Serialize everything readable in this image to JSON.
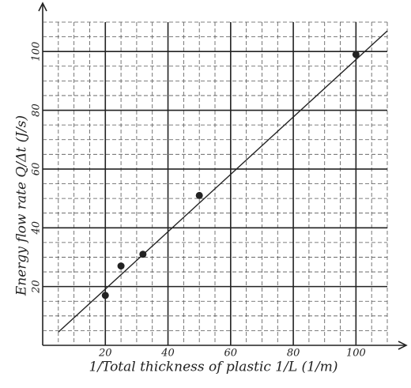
{
  "chart_data": {
    "type": "scatter",
    "x_label": "1/Total thickness of plastic 1/L (1/m)",
    "y_label": "Energy flow rate Q/Δt (J/s)",
    "x": [
      20,
      25,
      32,
      50,
      100
    ],
    "values": [
      17,
      27,
      31,
      51,
      99
    ],
    "color": "#222222",
    "fit_line": {
      "x": [
        5,
        110
      ],
      "y": [
        4.5,
        107
      ]
    },
    "xlim": [
      0,
      110
    ],
    "ylim": [
      0,
      110
    ],
    "xticks": [
      20,
      40,
      60,
      80,
      100
    ],
    "yticks": [
      20,
      40,
      60,
      80,
      100
    ],
    "minor_xticks": [
      5,
      10,
      15,
      25,
      30,
      35,
      45,
      50,
      55,
      65,
      70,
      75,
      85,
      90,
      95,
      105,
      110
    ],
    "minor_yticks": [
      5,
      10,
      15,
      25,
      30,
      35,
      45,
      50,
      55,
      65,
      70,
      75,
      85,
      90,
      95,
      105,
      110
    ],
    "grid": true
  }
}
